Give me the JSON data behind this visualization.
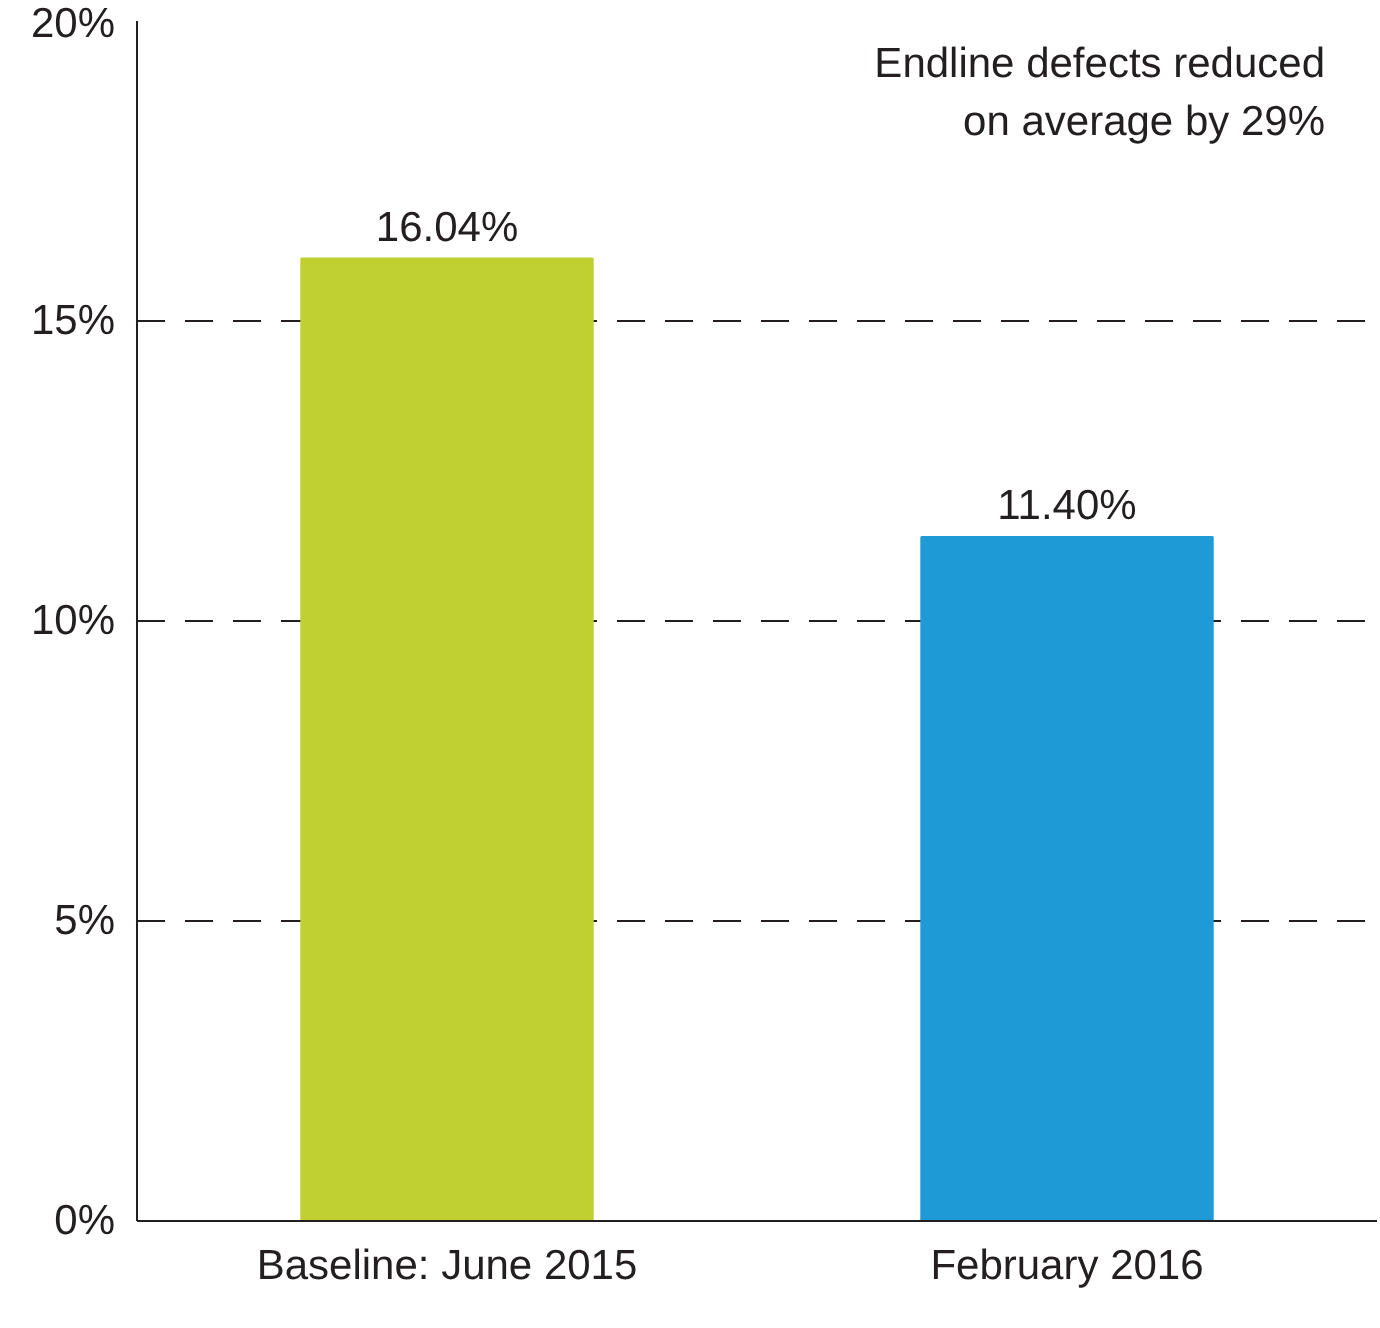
{
  "chart_data": {
    "type": "bar",
    "categories": [
      "Baseline: June 2015",
      "February 2016"
    ],
    "values": [
      16.04,
      11.4
    ],
    "colors": [
      "#bfd030",
      "#1e9ad6"
    ],
    "value_labels": [
      "16.04%",
      "11.40%"
    ],
    "ylim": [
      0,
      20
    ],
    "yticks": [
      {
        "value": 0,
        "label": "0%"
      },
      {
        "value": 5,
        "label": "5%"
      },
      {
        "value": 10,
        "label": "10%"
      },
      {
        "value": 15,
        "label": "15%"
      },
      {
        "value": 20,
        "label": "20%"
      }
    ],
    "grid": "y",
    "annotations": [
      "Endline defects reduced\non average by 29%"
    ]
  }
}
